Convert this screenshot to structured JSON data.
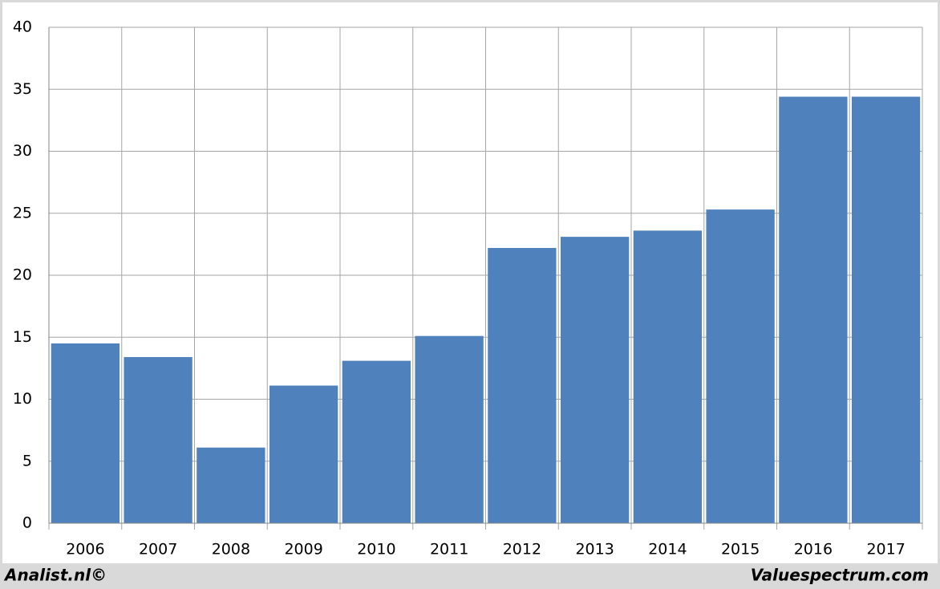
{
  "chart_data": {
    "type": "bar",
    "categories": [
      "2006",
      "2007",
      "2008",
      "2009",
      "2010",
      "2011",
      "2012",
      "2013",
      "2014",
      "2015",
      "2016",
      "2017"
    ],
    "values": [
      14.5,
      13.4,
      6.1,
      11.1,
      13.1,
      15.1,
      22.2,
      23.1,
      23.6,
      25.3,
      34.4,
      34.4
    ],
    "color": "#4f81bd",
    "ylim": [
      0,
      40
    ],
    "yticks": [
      0,
      5,
      10,
      15,
      20,
      25,
      30,
      35,
      40
    ],
    "grid": true,
    "footer_left": "Analist.nl©",
    "footer_right": "Valuespectrum.com"
  }
}
